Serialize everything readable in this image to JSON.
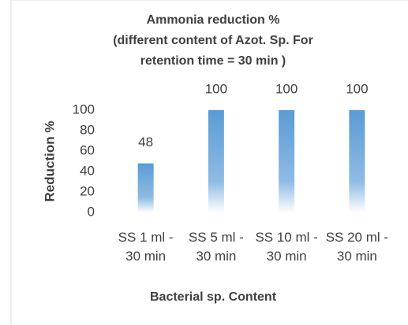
{
  "chart_data": {
    "type": "bar",
    "title": [
      "Ammonia reduction %",
      "(different content of Azot. Sp. For",
      "retention time = 30 min  )"
    ],
    "x_label": "Bacterial sp. Content",
    "y_label": "Reduction %",
    "categories": [
      "SS 1 ml - 30 min",
      "SS 5 ml - 30 min",
      "SS 10 ml - 30 min",
      "SS 20 ml - 30 min"
    ],
    "values": [
      48,
      100,
      100,
      100
    ],
    "color": "#5b9bd5",
    "ylim": [
      0,
      100
    ],
    "yticks": [
      0,
      20,
      40,
      60,
      80,
      100
    ],
    "grid": false
  }
}
